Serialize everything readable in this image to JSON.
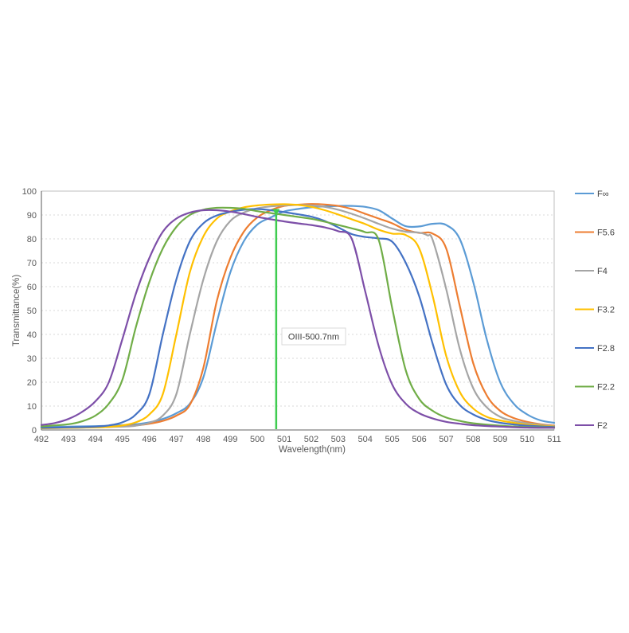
{
  "chart_data": {
    "type": "line",
    "title": "",
    "xlabel": "Wavelength(nm)",
    "ylabel": "Transmittance(%)",
    "xlim": [
      492,
      511
    ],
    "ylim": [
      0,
      100
    ],
    "x_ticks": [
      492,
      493,
      494,
      495,
      496,
      497,
      498,
      499,
      500,
      501,
      502,
      503,
      504,
      505,
      506,
      507,
      508,
      509,
      510,
      511
    ],
    "y_ticks": [
      0,
      10,
      20,
      30,
      40,
      50,
      60,
      70,
      80,
      90,
      100
    ],
    "grid": "horizontal-dotted",
    "legend_position": "right",
    "colors": {
      "grid": "#d9d9d9",
      "plot_border": "#bfbfbf",
      "axis_line": "#808080",
      "tick_text": "#595959",
      "annotation_line": "#3fcc4f",
      "annotation_box_border": "#d9d9d9",
      "annotation_box_fill": "#ffffff"
    },
    "annotation": {
      "label": "OIII-500.7nm",
      "wavelength_nm": 500.7,
      "marker_top_pct": 90.5
    },
    "series": [
      {
        "name": "F∞",
        "color": "#5B9BD5",
        "points": [
          [
            492,
            1.3
          ],
          [
            493,
            1.4
          ],
          [
            494,
            1.6
          ],
          [
            495,
            2.0
          ],
          [
            495.5,
            2.4
          ],
          [
            496,
            3.2
          ],
          [
            496.5,
            4.6
          ],
          [
            497,
            7
          ],
          [
            497.5,
            11
          ],
          [
            498,
            22
          ],
          [
            498.5,
            45
          ],
          [
            499,
            66
          ],
          [
            499.5,
            79
          ],
          [
            500,
            86
          ],
          [
            500.5,
            89
          ],
          [
            501,
            91.5
          ],
          [
            501.5,
            92.5
          ],
          [
            502,
            93.2
          ],
          [
            502.5,
            93.6
          ],
          [
            503,
            93.8
          ],
          [
            503.5,
            93.8
          ],
          [
            504,
            93.4
          ],
          [
            504.5,
            92
          ],
          [
            505,
            88.5
          ],
          [
            505.5,
            85.3
          ],
          [
            506,
            85.2
          ],
          [
            506.5,
            86.3
          ],
          [
            507,
            85.8
          ],
          [
            507.5,
            80
          ],
          [
            508,
            62
          ],
          [
            508.5,
            38
          ],
          [
            509,
            20
          ],
          [
            509.5,
            11
          ],
          [
            510,
            6.5
          ],
          [
            510.5,
            4
          ],
          [
            511,
            3
          ]
        ]
      },
      {
        "name": "F5.6",
        "color": "#ED7D31",
        "points": [
          [
            492,
            0.9
          ],
          [
            493,
            1.0
          ],
          [
            494,
            1.2
          ],
          [
            495,
            1.5
          ],
          [
            495.5,
            1.9
          ],
          [
            496,
            2.6
          ],
          [
            496.5,
            3.8
          ],
          [
            497,
            6
          ],
          [
            497.5,
            10.5
          ],
          [
            498,
            26
          ],
          [
            498.5,
            54
          ],
          [
            499,
            72
          ],
          [
            499.5,
            83
          ],
          [
            500,
            89
          ],
          [
            500.5,
            92
          ],
          [
            501,
            93.8
          ],
          [
            501.5,
            94.3
          ],
          [
            502,
            94.6
          ],
          [
            502.5,
            94.4
          ],
          [
            503,
            93.8
          ],
          [
            503.5,
            92.5
          ],
          [
            504,
            90.5
          ],
          [
            504.5,
            88.5
          ],
          [
            505,
            86.5
          ],
          [
            505.5,
            83.8
          ],
          [
            506,
            82.5
          ],
          [
            506.5,
            82.2
          ],
          [
            507,
            76
          ],
          [
            507.5,
            52
          ],
          [
            508,
            28
          ],
          [
            508.5,
            14.5
          ],
          [
            509,
            8
          ],
          [
            509.5,
            5
          ],
          [
            510,
            3.4
          ],
          [
            510.5,
            2.4
          ],
          [
            511,
            1.8
          ]
        ]
      },
      {
        "name": "F4",
        "color": "#A5A5A5",
        "points": [
          [
            492,
            0.8
          ],
          [
            493,
            0.9
          ],
          [
            494,
            1.1
          ],
          [
            495,
            1.4
          ],
          [
            495.5,
            1.8
          ],
          [
            496,
            3
          ],
          [
            496.5,
            6
          ],
          [
            497,
            15
          ],
          [
            497.5,
            40
          ],
          [
            498,
            63
          ],
          [
            498.5,
            79
          ],
          [
            499,
            87.5
          ],
          [
            499.5,
            91
          ],
          [
            500,
            92.8
          ],
          [
            500.5,
            93.6
          ],
          [
            501,
            94
          ],
          [
            501.5,
            94.2
          ],
          [
            502,
            94
          ],
          [
            502.5,
            93.4
          ],
          [
            503,
            92.2
          ],
          [
            503.5,
            90.5
          ],
          [
            504,
            88.5
          ],
          [
            504.5,
            86.3
          ],
          [
            505,
            84.3
          ],
          [
            505.5,
            83
          ],
          [
            506,
            82.6
          ],
          [
            506.3,
            81.5
          ],
          [
            506.5,
            79.5
          ],
          [
            507,
            59
          ],
          [
            507.5,
            34
          ],
          [
            508,
            17.5
          ],
          [
            508.5,
            9.5
          ],
          [
            509,
            5.5
          ],
          [
            509.5,
            3.8
          ],
          [
            510,
            2.8
          ],
          [
            511,
            1.6
          ]
        ]
      },
      {
        "name": "F3.2",
        "color": "#FFC000",
        "points": [
          [
            492,
            0.7
          ],
          [
            493,
            0.9
          ],
          [
            494,
            1.1
          ],
          [
            494.5,
            1.3
          ],
          [
            495,
            1.9
          ],
          [
            495.5,
            3.2
          ],
          [
            496,
            6.5
          ],
          [
            496.5,
            15
          ],
          [
            497,
            40
          ],
          [
            497.5,
            66
          ],
          [
            498,
            81
          ],
          [
            498.5,
            88.5
          ],
          [
            499,
            91.5
          ],
          [
            499.5,
            93.2
          ],
          [
            500,
            94
          ],
          [
            500.5,
            94.4
          ],
          [
            501,
            94.5
          ],
          [
            501.5,
            94.2
          ],
          [
            502,
            93.4
          ],
          [
            502.5,
            92
          ],
          [
            503,
            90.2
          ],
          [
            503.5,
            88.2
          ],
          [
            504,
            86.2
          ],
          [
            504.5,
            83.8
          ],
          [
            505,
            82.2
          ],
          [
            505.5,
            81.6
          ],
          [
            506,
            76
          ],
          [
            506.5,
            56
          ],
          [
            507,
            31
          ],
          [
            507.5,
            16
          ],
          [
            508,
            9
          ],
          [
            508.5,
            5.5
          ],
          [
            509,
            4
          ],
          [
            509.5,
            3
          ],
          [
            510,
            2.2
          ],
          [
            511,
            1.4
          ]
        ]
      },
      {
        "name": "F2.8",
        "color": "#4472C4",
        "points": [
          [
            492,
            0.9
          ],
          [
            493,
            1.1
          ],
          [
            494,
            1.4
          ],
          [
            494.5,
            1.9
          ],
          [
            495,
            3.2
          ],
          [
            495.5,
            6.5
          ],
          [
            496,
            15
          ],
          [
            496.5,
            40
          ],
          [
            497,
            63
          ],
          [
            497.5,
            79
          ],
          [
            498,
            86.5
          ],
          [
            498.5,
            89.8
          ],
          [
            499,
            91.3
          ],
          [
            499.5,
            92.2
          ],
          [
            500,
            92.5
          ],
          [
            500.5,
            92
          ],
          [
            501,
            91.2
          ],
          [
            501.5,
            90.3
          ],
          [
            502,
            89.3
          ],
          [
            502.5,
            87.5
          ],
          [
            503,
            84.8
          ],
          [
            503.5,
            82
          ],
          [
            504,
            80.8
          ],
          [
            504.5,
            80.2
          ],
          [
            505,
            78.8
          ],
          [
            505.5,
            70
          ],
          [
            506,
            56
          ],
          [
            506.5,
            36
          ],
          [
            507,
            19
          ],
          [
            507.5,
            10.5
          ],
          [
            508,
            6.5
          ],
          [
            508.5,
            4.2
          ],
          [
            509,
            3
          ],
          [
            509.5,
            2.3
          ],
          [
            510,
            1.8
          ],
          [
            511,
            1.2
          ]
        ]
      },
      {
        "name": "F2.2",
        "color": "#70AD47",
        "points": [
          [
            492,
            1.5
          ],
          [
            493,
            2.4
          ],
          [
            493.5,
            3.6
          ],
          [
            494,
            6
          ],
          [
            494.5,
            11
          ],
          [
            495,
            21
          ],
          [
            495.5,
            43
          ],
          [
            496,
            62
          ],
          [
            496.5,
            76
          ],
          [
            497,
            85
          ],
          [
            497.5,
            90
          ],
          [
            498,
            92.2
          ],
          [
            498.5,
            93
          ],
          [
            499,
            93
          ],
          [
            499.5,
            92.6
          ],
          [
            500,
            91.6
          ],
          [
            500.5,
            90.8
          ],
          [
            501,
            90
          ],
          [
            501.5,
            89.2
          ],
          [
            502,
            88.4
          ],
          [
            502.5,
            87.2
          ],
          [
            503,
            85.8
          ],
          [
            503.5,
            84.4
          ],
          [
            504,
            82.8
          ],
          [
            504.5,
            79.5
          ],
          [
            505,
            51
          ],
          [
            505.5,
            25
          ],
          [
            506,
            13
          ],
          [
            506.5,
            8
          ],
          [
            507,
            5.2
          ],
          [
            507.5,
            3.8
          ],
          [
            508,
            2.8
          ],
          [
            509,
            1.8
          ],
          [
            510,
            1.2
          ],
          [
            511,
            1
          ]
        ]
      },
      {
        "name": "F2",
        "color": "#7D4FA8",
        "points": [
          [
            492,
            2.1
          ],
          [
            492.5,
            2.9
          ],
          [
            493,
            4.6
          ],
          [
            493.5,
            7.5
          ],
          [
            494,
            12
          ],
          [
            494.5,
            20
          ],
          [
            495,
            38
          ],
          [
            495.5,
            57
          ],
          [
            496,
            72
          ],
          [
            496.5,
            83
          ],
          [
            497,
            88.5
          ],
          [
            497.5,
            91
          ],
          [
            498,
            92
          ],
          [
            498.5,
            92
          ],
          [
            499,
            91.4
          ],
          [
            499.5,
            90.4
          ],
          [
            500,
            89.2
          ],
          [
            500.5,
            88.2
          ],
          [
            501,
            87.3
          ],
          [
            501.5,
            86.5
          ],
          [
            502,
            85.8
          ],
          [
            502.5,
            84.8
          ],
          [
            503,
            83.2
          ],
          [
            503.5,
            80
          ],
          [
            504,
            58
          ],
          [
            504.5,
            35
          ],
          [
            505,
            19
          ],
          [
            505.5,
            11
          ],
          [
            506,
            7
          ],
          [
            506.5,
            4.8
          ],
          [
            507,
            3.4
          ],
          [
            507.5,
            2.6
          ],
          [
            508,
            2
          ],
          [
            509,
            1.4
          ],
          [
            510,
            1
          ],
          [
            511,
            0.9
          ]
        ]
      }
    ]
  }
}
